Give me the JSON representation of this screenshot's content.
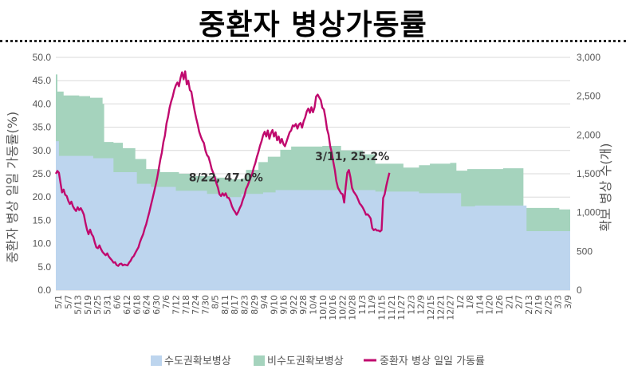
{
  "chart_data": {
    "type": "area",
    "title": "중환자 병상가동률",
    "ylabel_left": "중환자 병상 일일 가동률(%)",
    "ylabel_right": "확보 병상 수(개)",
    "ylim_left": [
      0,
      50
    ],
    "ylim_right": [
      0,
      3000
    ],
    "yticks_left": [
      "0.0",
      "5.0",
      "10.0",
      "15.0",
      "20.0",
      "25.0",
      "30.0",
      "35.0",
      "40.0",
      "45.0",
      "50.0"
    ],
    "yticks_right": [
      "0",
      "500",
      "1,000",
      "1,500",
      "2,000",
      "2,500",
      "3,000"
    ],
    "x_ticks": [
      "5/1",
      "5/7",
      "5/13",
      "5/19",
      "5/25",
      "5/31",
      "6/6",
      "6/12",
      "6/18",
      "6/24",
      "6/30",
      "7/6",
      "7/12",
      "7/18",
      "7/24",
      "7/30",
      "8/5",
      "8/11",
      "8/17",
      "8/23",
      "8/29",
      "9/4",
      "9/10",
      "9/16",
      "9/22",
      "9/28",
      "10/4",
      "10/10",
      "10/16",
      "10/22",
      "10/28",
      "11/3",
      "11/9",
      "11/15",
      "11/21",
      "11/27",
      "12/3",
      "12/9",
      "12/15",
      "12/21",
      "12/27",
      "1/2",
      "1/8",
      "1/14",
      "1/20",
      "1/26",
      "2/1",
      "2/7",
      "2/13",
      "2/19",
      "2/25",
      "3/3",
      "3/9"
    ],
    "legend": [
      "수도권확보병상",
      "비수도권확보병상",
      "중환자 병상 일일 가동률"
    ],
    "colors": {
      "capital": "#bdd5ee",
      "noncapital": "#a5d3bd",
      "rate": "#c0096e",
      "grid": "#d9d9d9"
    },
    "series": [
      {
        "name": "수도권확보병상",
        "axis": "right",
        "points": [
          [
            0,
            1920
          ],
          [
            2,
            1730
          ],
          [
            24,
            1700
          ],
          [
            37,
            1520
          ],
          [
            52,
            1370
          ],
          [
            61,
            1330
          ],
          [
            77,
            1280
          ],
          [
            97,
            1240
          ],
          [
            109,
            1200
          ],
          [
            119,
            1240
          ],
          [
            133,
            1260
          ],
          [
            141,
            1290
          ],
          [
            157,
            1290
          ],
          [
            178,
            1290
          ],
          [
            205,
            1270
          ],
          [
            233,
            1250
          ],
          [
            245,
            1250
          ],
          [
            260,
            1080
          ],
          [
            263,
            1080
          ],
          [
            269,
            1090
          ],
          [
            290,
            1090
          ],
          [
            299,
            1090
          ],
          [
            302,
            760
          ],
          [
            313,
            760
          ],
          [
            323,
            760
          ],
          [
            329,
            760
          ],
          [
            330,
            450
          ],
          [
            330,
            400
          ]
        ]
      },
      {
        "name": "비수도권확보병상",
        "axis": "right",
        "points": [
          [
            0,
            2780
          ],
          [
            1,
            2560
          ],
          [
            5,
            2510
          ],
          [
            15,
            2500
          ],
          [
            22,
            2480
          ],
          [
            30,
            2400
          ],
          [
            31,
            1910
          ],
          [
            37,
            1900
          ],
          [
            43,
            1830
          ],
          [
            51,
            1690
          ],
          [
            58,
            1560
          ],
          [
            67,
            1520
          ],
          [
            79,
            1500
          ],
          [
            86,
            1470
          ],
          [
            103,
            1450
          ],
          [
            109,
            1430
          ],
          [
            119,
            1440
          ],
          [
            122,
            1550
          ],
          [
            130,
            1650
          ],
          [
            136,
            1720
          ],
          [
            144,
            1810
          ],
          [
            151,
            1850
          ],
          [
            171,
            1860
          ],
          [
            183,
            1800
          ],
          [
            197,
            1750
          ],
          [
            205,
            1630
          ],
          [
            223,
            1580
          ],
          [
            233,
            1610
          ],
          [
            240,
            1630
          ],
          [
            253,
            1640
          ],
          [
            257,
            1540
          ],
          [
            264,
            1560
          ],
          [
            287,
            1570
          ],
          [
            299,
            1570
          ],
          [
            300,
            1060
          ],
          [
            322,
            1060
          ],
          [
            323,
            1040
          ],
          [
            329,
            1040
          ],
          [
            330,
            440
          ],
          [
            330,
            400
          ]
        ]
      },
      {
        "name": "중환자 병상 일일 가동률",
        "axis": "left",
        "labels": [
          {
            "x": 104,
            "text": "8/22, 47.0%"
          },
          {
            "x": 314,
            "text": "3/11, 25.2%"
          }
        ],
        "points": [
          [
            0,
            25.0
          ],
          [
            1,
            25.6
          ],
          [
            2,
            25.2
          ],
          [
            3,
            23.0
          ],
          [
            4,
            21.0
          ],
          [
            5,
            21.6
          ],
          [
            6,
            20.5
          ],
          [
            7,
            20.2
          ],
          [
            8,
            19.2
          ],
          [
            9,
            18.5
          ],
          [
            10,
            19.0
          ],
          [
            11,
            18.0
          ],
          [
            12,
            17.4
          ],
          [
            13,
            17.0
          ],
          [
            14,
            17.8
          ],
          [
            15,
            17.2
          ],
          [
            16,
            17.6
          ],
          [
            17,
            17.0
          ],
          [
            18,
            16.2
          ],
          [
            19,
            14.5
          ],
          [
            20,
            13.0
          ],
          [
            21,
            12.0
          ],
          [
            22,
            13.0
          ],
          [
            23,
            12.0
          ],
          [
            24,
            11.5
          ],
          [
            25,
            10.2
          ],
          [
            26,
            9.2
          ],
          [
            27,
            9.0
          ],
          [
            28,
            9.6
          ],
          [
            29,
            8.8
          ],
          [
            30,
            8.2
          ],
          [
            31,
            7.8
          ],
          [
            32,
            7.5
          ],
          [
            33,
            7.9
          ],
          [
            34,
            7.2
          ],
          [
            35,
            6.8
          ],
          [
            36,
            6.4
          ],
          [
            37,
            5.9
          ],
          [
            38,
            6.0
          ],
          [
            39,
            5.4
          ],
          [
            40,
            5.2
          ],
          [
            41,
            5.6
          ],
          [
            42,
            5.7
          ],
          [
            43,
            5.3
          ],
          [
            44,
            5.5
          ],
          [
            45,
            5.4
          ],
          [
            46,
            5.3
          ],
          [
            47,
            5.9
          ],
          [
            48,
            6.3
          ],
          [
            49,
            7.0
          ],
          [
            50,
            7.3
          ],
          [
            51,
            8.0
          ],
          [
            52,
            8.6
          ],
          [
            53,
            9.2
          ],
          [
            54,
            10.3
          ],
          [
            55,
            11.2
          ],
          [
            56,
            12.0
          ],
          [
            57,
            13.2
          ],
          [
            58,
            14.2
          ],
          [
            59,
            15.5
          ],
          [
            60,
            16.8
          ],
          [
            61,
            18.2
          ],
          [
            62,
            19.6
          ],
          [
            63,
            21.0
          ],
          [
            64,
            22.5
          ],
          [
            65,
            24.0
          ],
          [
            66,
            26.0
          ],
          [
            67,
            28.0
          ],
          [
            68,
            29.5
          ],
          [
            69,
            31.8
          ],
          [
            70,
            33.2
          ],
          [
            71,
            35.8
          ],
          [
            72,
            37.2
          ],
          [
            73,
            39.2
          ],
          [
            74,
            40.5
          ],
          [
            75,
            41.6
          ],
          [
            76,
            43.0
          ],
          [
            77,
            44.0
          ],
          [
            78,
            44.6
          ],
          [
            79,
            43.8
          ],
          [
            80,
            45.6
          ],
          [
            81,
            46.8
          ],
          [
            82,
            45.3
          ],
          [
            83,
            47.0
          ],
          [
            84,
            44.2
          ],
          [
            85,
            45.0
          ],
          [
            86,
            43.0
          ],
          [
            87,
            42.6
          ],
          [
            88,
            40.5
          ],
          [
            89,
            38.6
          ],
          [
            90,
            37.0
          ],
          [
            91,
            35.6
          ],
          [
            92,
            34.0
          ],
          [
            93,
            33.0
          ],
          [
            94,
            32.2
          ],
          [
            95,
            31.6
          ],
          [
            96,
            30.0
          ],
          [
            97,
            29.0
          ],
          [
            98,
            28.6
          ],
          [
            99,
            27.4
          ],
          [
            100,
            26.0
          ],
          [
            101,
            25.2
          ],
          [
            102,
            24.2
          ],
          [
            103,
            23.0
          ],
          [
            104,
            22.0
          ],
          [
            105,
            20.6
          ],
          [
            106,
            20.2
          ],
          [
            107,
            20.8
          ],
          [
            108,
            20.3
          ],
          [
            109,
            20.8
          ],
          [
            110,
            19.9
          ],
          [
            111,
            19.8
          ],
          [
            112,
            19.1
          ],
          [
            113,
            18.0
          ],
          [
            114,
            17.3
          ],
          [
            115,
            16.8
          ],
          [
            116,
            16.2
          ],
          [
            117,
            16.8
          ],
          [
            118,
            17.6
          ],
          [
            119,
            18.3
          ],
          [
            120,
            19.4
          ],
          [
            121,
            20.3
          ],
          [
            122,
            21.7
          ],
          [
            123,
            22.4
          ],
          [
            124,
            23.3
          ],
          [
            125,
            24.2
          ],
          [
            126,
            25.0
          ],
          [
            127,
            26.3
          ],
          [
            128,
            27.3
          ],
          [
            129,
            28.6
          ],
          [
            130,
            29.7
          ],
          [
            131,
            31.0
          ],
          [
            132,
            32.0
          ],
          [
            133,
            33.3
          ],
          [
            134,
            34.0
          ],
          [
            135,
            33.0
          ],
          [
            136,
            34.3
          ],
          [
            137,
            32.5
          ],
          [
            138,
            33.7
          ],
          [
            139,
            34.4
          ],
          [
            140,
            33.0
          ],
          [
            141,
            33.9
          ],
          [
            142,
            32.2
          ],
          [
            143,
            33.0
          ],
          [
            144,
            31.6
          ],
          [
            145,
            32.5
          ],
          [
            146,
            31.4
          ],
          [
            147,
            30.9
          ],
          [
            148,
            31.9
          ],
          [
            149,
            32.9
          ],
          [
            150,
            33.9
          ],
          [
            151,
            34.3
          ],
          [
            152,
            35.4
          ],
          [
            153,
            35.2
          ],
          [
            154,
            35.7
          ],
          [
            155,
            34.7
          ],
          [
            156,
            35.6
          ],
          [
            157,
            35.9
          ],
          [
            158,
            34.9
          ],
          [
            159,
            36.3
          ],
          [
            160,
            37.1
          ],
          [
            161,
            38.4
          ],
          [
            162,
            39.0
          ],
          [
            163,
            38.1
          ],
          [
            164,
            39.3
          ],
          [
            165,
            38.2
          ],
          [
            166,
            39.3
          ],
          [
            167,
            41.6
          ],
          [
            168,
            42.0
          ],
          [
            169,
            41.4
          ],
          [
            170,
            40.8
          ],
          [
            171,
            39.2
          ],
          [
            172,
            38.8
          ],
          [
            173,
            37.0
          ],
          [
            174,
            34.6
          ],
          [
            175,
            33.4
          ],
          [
            176,
            31.0
          ],
          [
            177,
            29.5
          ],
          [
            178,
            27.6
          ],
          [
            179,
            25.8
          ],
          [
            180,
            23.4
          ],
          [
            181,
            22.0
          ],
          [
            182,
            21.4
          ],
          [
            183,
            20.8
          ],
          [
            184,
            20.6
          ],
          [
            185,
            18.8
          ],
          [
            186,
            22.2
          ],
          [
            187,
            25.2
          ],
          [
            188,
            25.8
          ],
          [
            189,
            24.3
          ],
          [
            190,
            22.0
          ],
          [
            191,
            21.2
          ],
          [
            192,
            20.7
          ],
          [
            193,
            20.2
          ],
          [
            194,
            19.4
          ],
          [
            195,
            18.6
          ],
          [
            196,
            18.2
          ],
          [
            197,
            17.7
          ],
          [
            198,
            17.0
          ],
          [
            199,
            16.2
          ],
          [
            200,
            16.3
          ],
          [
            201,
            15.9
          ],
          [
            202,
            15.4
          ],
          [
            203,
            13.3
          ],
          [
            204,
            12.9
          ],
          [
            205,
            13.1
          ],
          [
            206,
            12.8
          ],
          [
            207,
            12.8
          ],
          [
            208,
            12.6
          ],
          [
            209,
            12.9
          ],
          [
            210,
            19.8
          ],
          [
            211,
            20.6
          ],
          [
            212,
            22.4
          ],
          [
            213,
            23.8
          ],
          [
            214,
            25.2
          ]
        ]
      }
    ]
  }
}
